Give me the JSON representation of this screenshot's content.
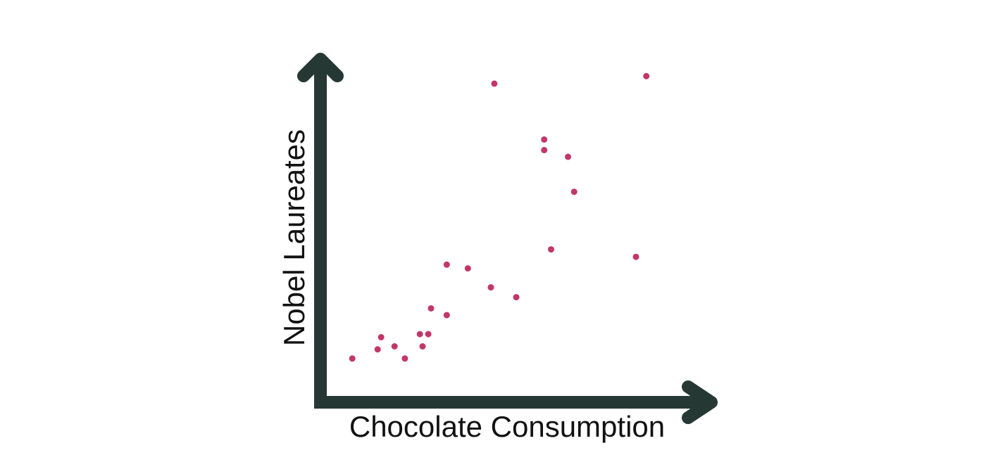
{
  "colors": {
    "background": "#ffffff",
    "axis": "#263833",
    "point": "#c2376a",
    "text": "#111111"
  },
  "chart_data": {
    "type": "scatter",
    "xlabel": "Chocolate Consumption",
    "ylabel": "Nobel Laureates",
    "xlim": [
      0,
      1
    ],
    "ylim": [
      0,
      1
    ],
    "grid": false,
    "axis_ticks": false,
    "points": [
      {
        "x": 0.083,
        "y": 0.129
      },
      {
        "x": 0.149,
        "y": 0.156
      },
      {
        "x": 0.158,
        "y": 0.192
      },
      {
        "x": 0.193,
        "y": 0.165
      },
      {
        "x": 0.22,
        "y": 0.129
      },
      {
        "x": 0.259,
        "y": 0.201
      },
      {
        "x": 0.266,
        "y": 0.165
      },
      {
        "x": 0.281,
        "y": 0.201
      },
      {
        "x": 0.288,
        "y": 0.277
      },
      {
        "x": 0.329,
        "y": 0.257
      },
      {
        "x": 0.329,
        "y": 0.406
      },
      {
        "x": 0.384,
        "y": 0.395
      },
      {
        "x": 0.444,
        "y": 0.339
      },
      {
        "x": 0.453,
        "y": 0.94
      },
      {
        "x": 0.51,
        "y": 0.31
      },
      {
        "x": 0.583,
        "y": 0.744
      },
      {
        "x": 0.583,
        "y": 0.775
      },
      {
        "x": 0.601,
        "y": 0.451
      },
      {
        "x": 0.645,
        "y": 0.724
      },
      {
        "x": 0.661,
        "y": 0.621
      },
      {
        "x": 0.822,
        "y": 0.429
      },
      {
        "x": 0.849,
        "y": 0.962
      }
    ]
  }
}
